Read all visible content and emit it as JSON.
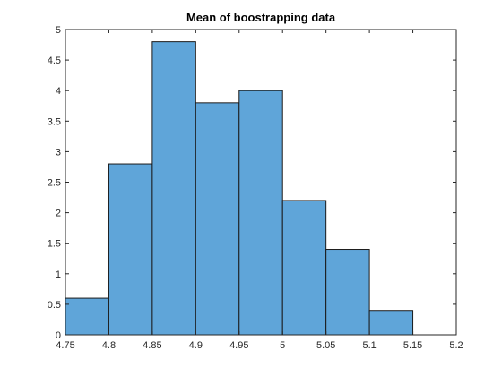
{
  "chart_data": {
    "type": "bar",
    "title": "Mean of boostrapping data",
    "xlabel": "",
    "ylabel": "",
    "bin_edges": [
      4.75,
      4.8,
      4.85,
      4.9,
      4.95,
      5.0,
      5.05,
      5.1,
      5.15
    ],
    "values": [
      0.6,
      2.8,
      4.8,
      3.8,
      4.0,
      2.2,
      1.4,
      0.4
    ],
    "xlim": [
      4.75,
      5.2
    ],
    "ylim": [
      0,
      5
    ],
    "x_ticks": [
      "4.75",
      "4.8",
      "4.85",
      "4.9",
      "4.95",
      "5",
      "5.05",
      "5.1",
      "5.15",
      "5.2"
    ],
    "y_ticks": [
      "0",
      "0.5",
      "1",
      "1.5",
      "2",
      "2.5",
      "3",
      "3.5",
      "4",
      "4.5",
      "5"
    ],
    "bar_color": "#5fa5d9",
    "edge_color": "#1a1a1a",
    "grid": false,
    "box": true
  }
}
